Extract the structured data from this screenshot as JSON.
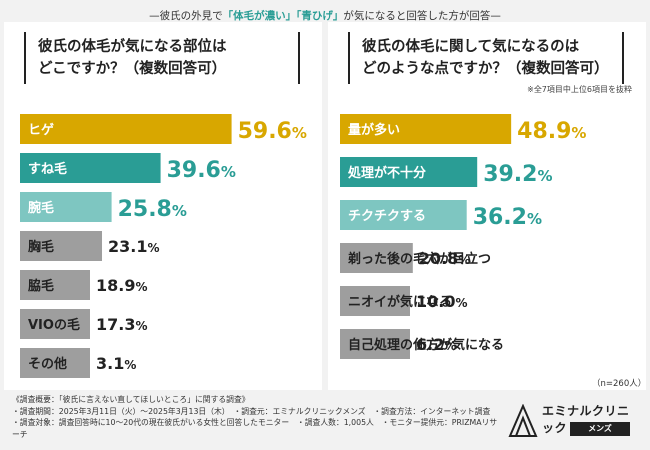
{
  "header": {
    "prefix": "—彼氏の外見で",
    "highlight": "「体毛が濃い」「青ひげ」",
    "suffix": "が気になると回答した方が回答—"
  },
  "left": {
    "question_l1": "彼氏の体毛が気になる部位は",
    "question_l2": "どこですか？（複数回答可）"
  },
  "right": {
    "question_l1": "彼氏の体毛に関して気になるのは",
    "question_l2": "どのような点ですか？（複数回答可）",
    "note": "※全7項目中上位6項目を抜粋"
  },
  "n_label": "（n=260人）",
  "chart_data": [
    {
      "type": "bar",
      "title": "彼氏の体毛が気になる部位はどこですか？（複数回答可）",
      "unit": "%",
      "categories": [
        "ヒゲ",
        "すね毛",
        "腕毛",
        "胸毛",
        "脇毛",
        "VIOの毛",
        "その他"
      ],
      "values": [
        59.6,
        39.6,
        25.8,
        23.1,
        18.9,
        17.3,
        3.1
      ],
      "colors": [
        "#d8a700",
        "#2a9d95",
        "#7ec6c1",
        "#9e9e9e",
        "#9e9e9e",
        "#9e9e9e",
        "#9e9e9e"
      ]
    },
    {
      "type": "bar",
      "title": "彼氏の体毛に関して気になるのはどのような点ですか？（複数回答可）",
      "unit": "%",
      "categories": [
        "量が多い",
        "処理が不十分",
        "チクチクする",
        "剃った後の毛穴が目立つ",
        "ニオイが気になる",
        "自己処理の仕方が気になる"
      ],
      "values": [
        48.9,
        39.2,
        36.2,
        20.8,
        10.0,
        6.2
      ],
      "colors": [
        "#d8a700",
        "#2a9d95",
        "#7ec6c1",
        "#9e9e9e",
        "#9e9e9e",
        "#9e9e9e"
      ]
    }
  ],
  "footer": {
    "l1": "《調査概要：「彼氏に言えない直してほしいところ」に関する調査》",
    "l2": "・調査期間：2025年3月11日（火）〜2025年3月13日（木）　・調査元：エミナルクリニックメンズ　・調査方法：インターネット調査",
    "l3": "・調査対象：調査回答時に10〜20代の現在彼氏がいる女性と回答したモニター　・調査人数：1,005人　・モニター提供元：PRIZMAリサーチ"
  },
  "logo": {
    "name": "エミナルクリニック",
    "sub": "メンズ"
  }
}
